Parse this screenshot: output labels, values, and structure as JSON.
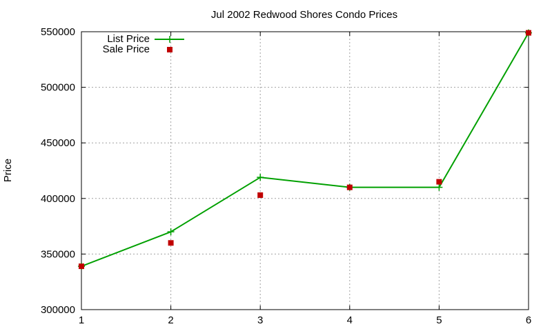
{
  "chart_data": {
    "type": "line",
    "title": "Jul 2002 Redwood Shores Condo Prices",
    "ylabel": "Price",
    "xlabel": "",
    "xlim": [
      1,
      6
    ],
    "ylim": [
      300000,
      550000
    ],
    "x_ticks": [
      "1",
      "2",
      "3",
      "4",
      "5",
      "6"
    ],
    "y_ticks": [
      "300000",
      "350000",
      "400000",
      "450000",
      "500000",
      "550000"
    ],
    "x": [
      1,
      2,
      3,
      4,
      5,
      6
    ],
    "grid": true,
    "legend_position": "top-left",
    "series": [
      {
        "name": "List Price",
        "style": "line-with-plus-markers",
        "color": "#00a000",
        "values": [
          339000,
          370000,
          419000,
          410000,
          410000,
          549000
        ]
      },
      {
        "name": "Sale Price",
        "style": "square-points",
        "color": "#c00000",
        "values": [
          339000,
          360000,
          403000,
          410000,
          415000,
          549000
        ]
      }
    ]
  }
}
